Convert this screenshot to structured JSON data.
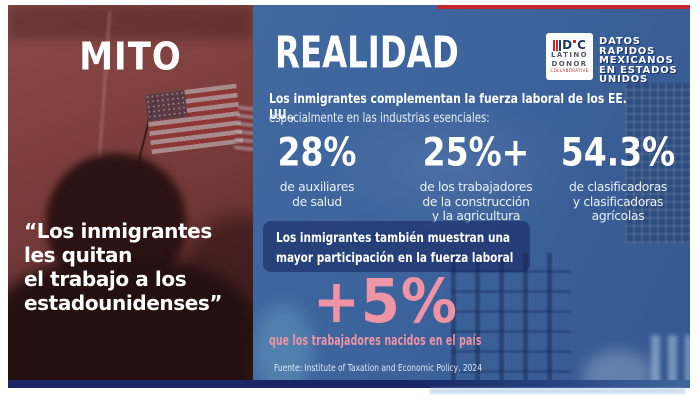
{
  "palette": {
    "maroon": "#7b3d3c",
    "blue": "#3c639c",
    "navy": "#1a2565",
    "red": "#c1272d",
    "pink": "#ee94a4",
    "white": "#ffffff"
  },
  "myth": {
    "title": "MITO",
    "quote": "“Los inmigrantes\nles quitan\nel trabajo a los\nestadounidenses”"
  },
  "reality": {
    "title": "REALIDAD",
    "logo": {
      "mark_d": "D",
      "mark_c": "C",
      "line1": "LATINO",
      "line2": "DONOR",
      "line3": "COLLABORATIVE"
    },
    "badge": "DATOS\nRAPIDOS\nMEXICANOS\nEN ESTADOS\nUNIDOS",
    "intro_bold": "Los inmigrantes complementan la fuerza laboral de los EE. UU.,",
    "intro_regular": "especialmente en las industrias esenciales:",
    "stats": [
      {
        "value": "28%",
        "caption": "de auxiliares\nde salud"
      },
      {
        "value": "25%+",
        "caption": "de los trabajadores\nde la construcción\ny la agricultura"
      },
      {
        "value": "54.3%",
        "caption": "de clasificadoras\ny clasificadoras\nagrícolas"
      }
    ],
    "participation_note": "Los inmigrantes también muestran una\nmayor participación en la fuerza laboral",
    "participation_value": "+5%",
    "participation_caption": "que los trabajadores nacidos en el país",
    "source": "Fuente: Institute of Taxation and Economic Policy, 2024"
  }
}
